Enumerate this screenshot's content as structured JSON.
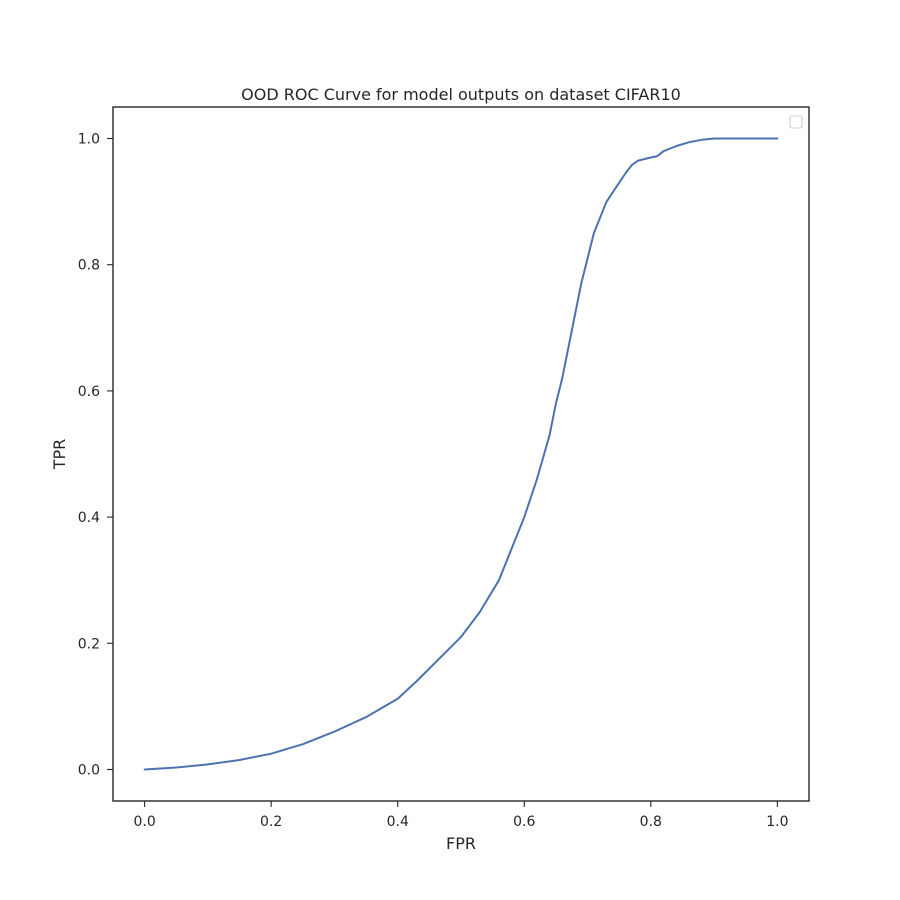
{
  "chart_data": {
    "type": "line",
    "title": "OOD ROC Curve for model outputs on dataset CIFAR10",
    "xlabel": "FPR",
    "ylabel": "TPR",
    "xlim": [
      -0.05,
      1.05
    ],
    "ylim": [
      -0.05,
      1.05
    ],
    "xticks": [
      0.0,
      0.2,
      0.4,
      0.6,
      0.8,
      1.0
    ],
    "xtick_labels": [
      "0.0",
      "0.2",
      "0.4",
      "0.6",
      "0.8",
      "1.0"
    ],
    "yticks": [
      0.0,
      0.2,
      0.4,
      0.6,
      0.8,
      1.0
    ],
    "ytick_labels": [
      "0.0",
      "0.2",
      "0.4",
      "0.6",
      "0.8",
      "1.0"
    ],
    "grid": false,
    "legend": {
      "placement": "top-right",
      "entries": []
    },
    "series": [
      {
        "color": "#4c72b0",
        "x": [
          0.0,
          0.05,
          0.1,
          0.15,
          0.2,
          0.25,
          0.3,
          0.35,
          0.4,
          0.43,
          0.46,
          0.5,
          0.53,
          0.56,
          0.58,
          0.6,
          0.62,
          0.64,
          0.65,
          0.66,
          0.67,
          0.68,
          0.69,
          0.7,
          0.71,
          0.72,
          0.73,
          0.74,
          0.75,
          0.76,
          0.77,
          0.78,
          0.8,
          0.81,
          0.82,
          0.84,
          0.86,
          0.88,
          0.9,
          0.95,
          1.0
        ],
        "y": [
          0.0,
          0.003,
          0.008,
          0.015,
          0.025,
          0.04,
          0.06,
          0.083,
          0.112,
          0.14,
          0.17,
          0.21,
          0.25,
          0.3,
          0.35,
          0.4,
          0.46,
          0.53,
          0.58,
          0.62,
          0.67,
          0.72,
          0.77,
          0.81,
          0.85,
          0.875,
          0.9,
          0.915,
          0.93,
          0.945,
          0.958,
          0.965,
          0.97,
          0.972,
          0.98,
          0.988,
          0.994,
          0.998,
          1.0,
          1.0,
          1.0
        ]
      }
    ]
  }
}
